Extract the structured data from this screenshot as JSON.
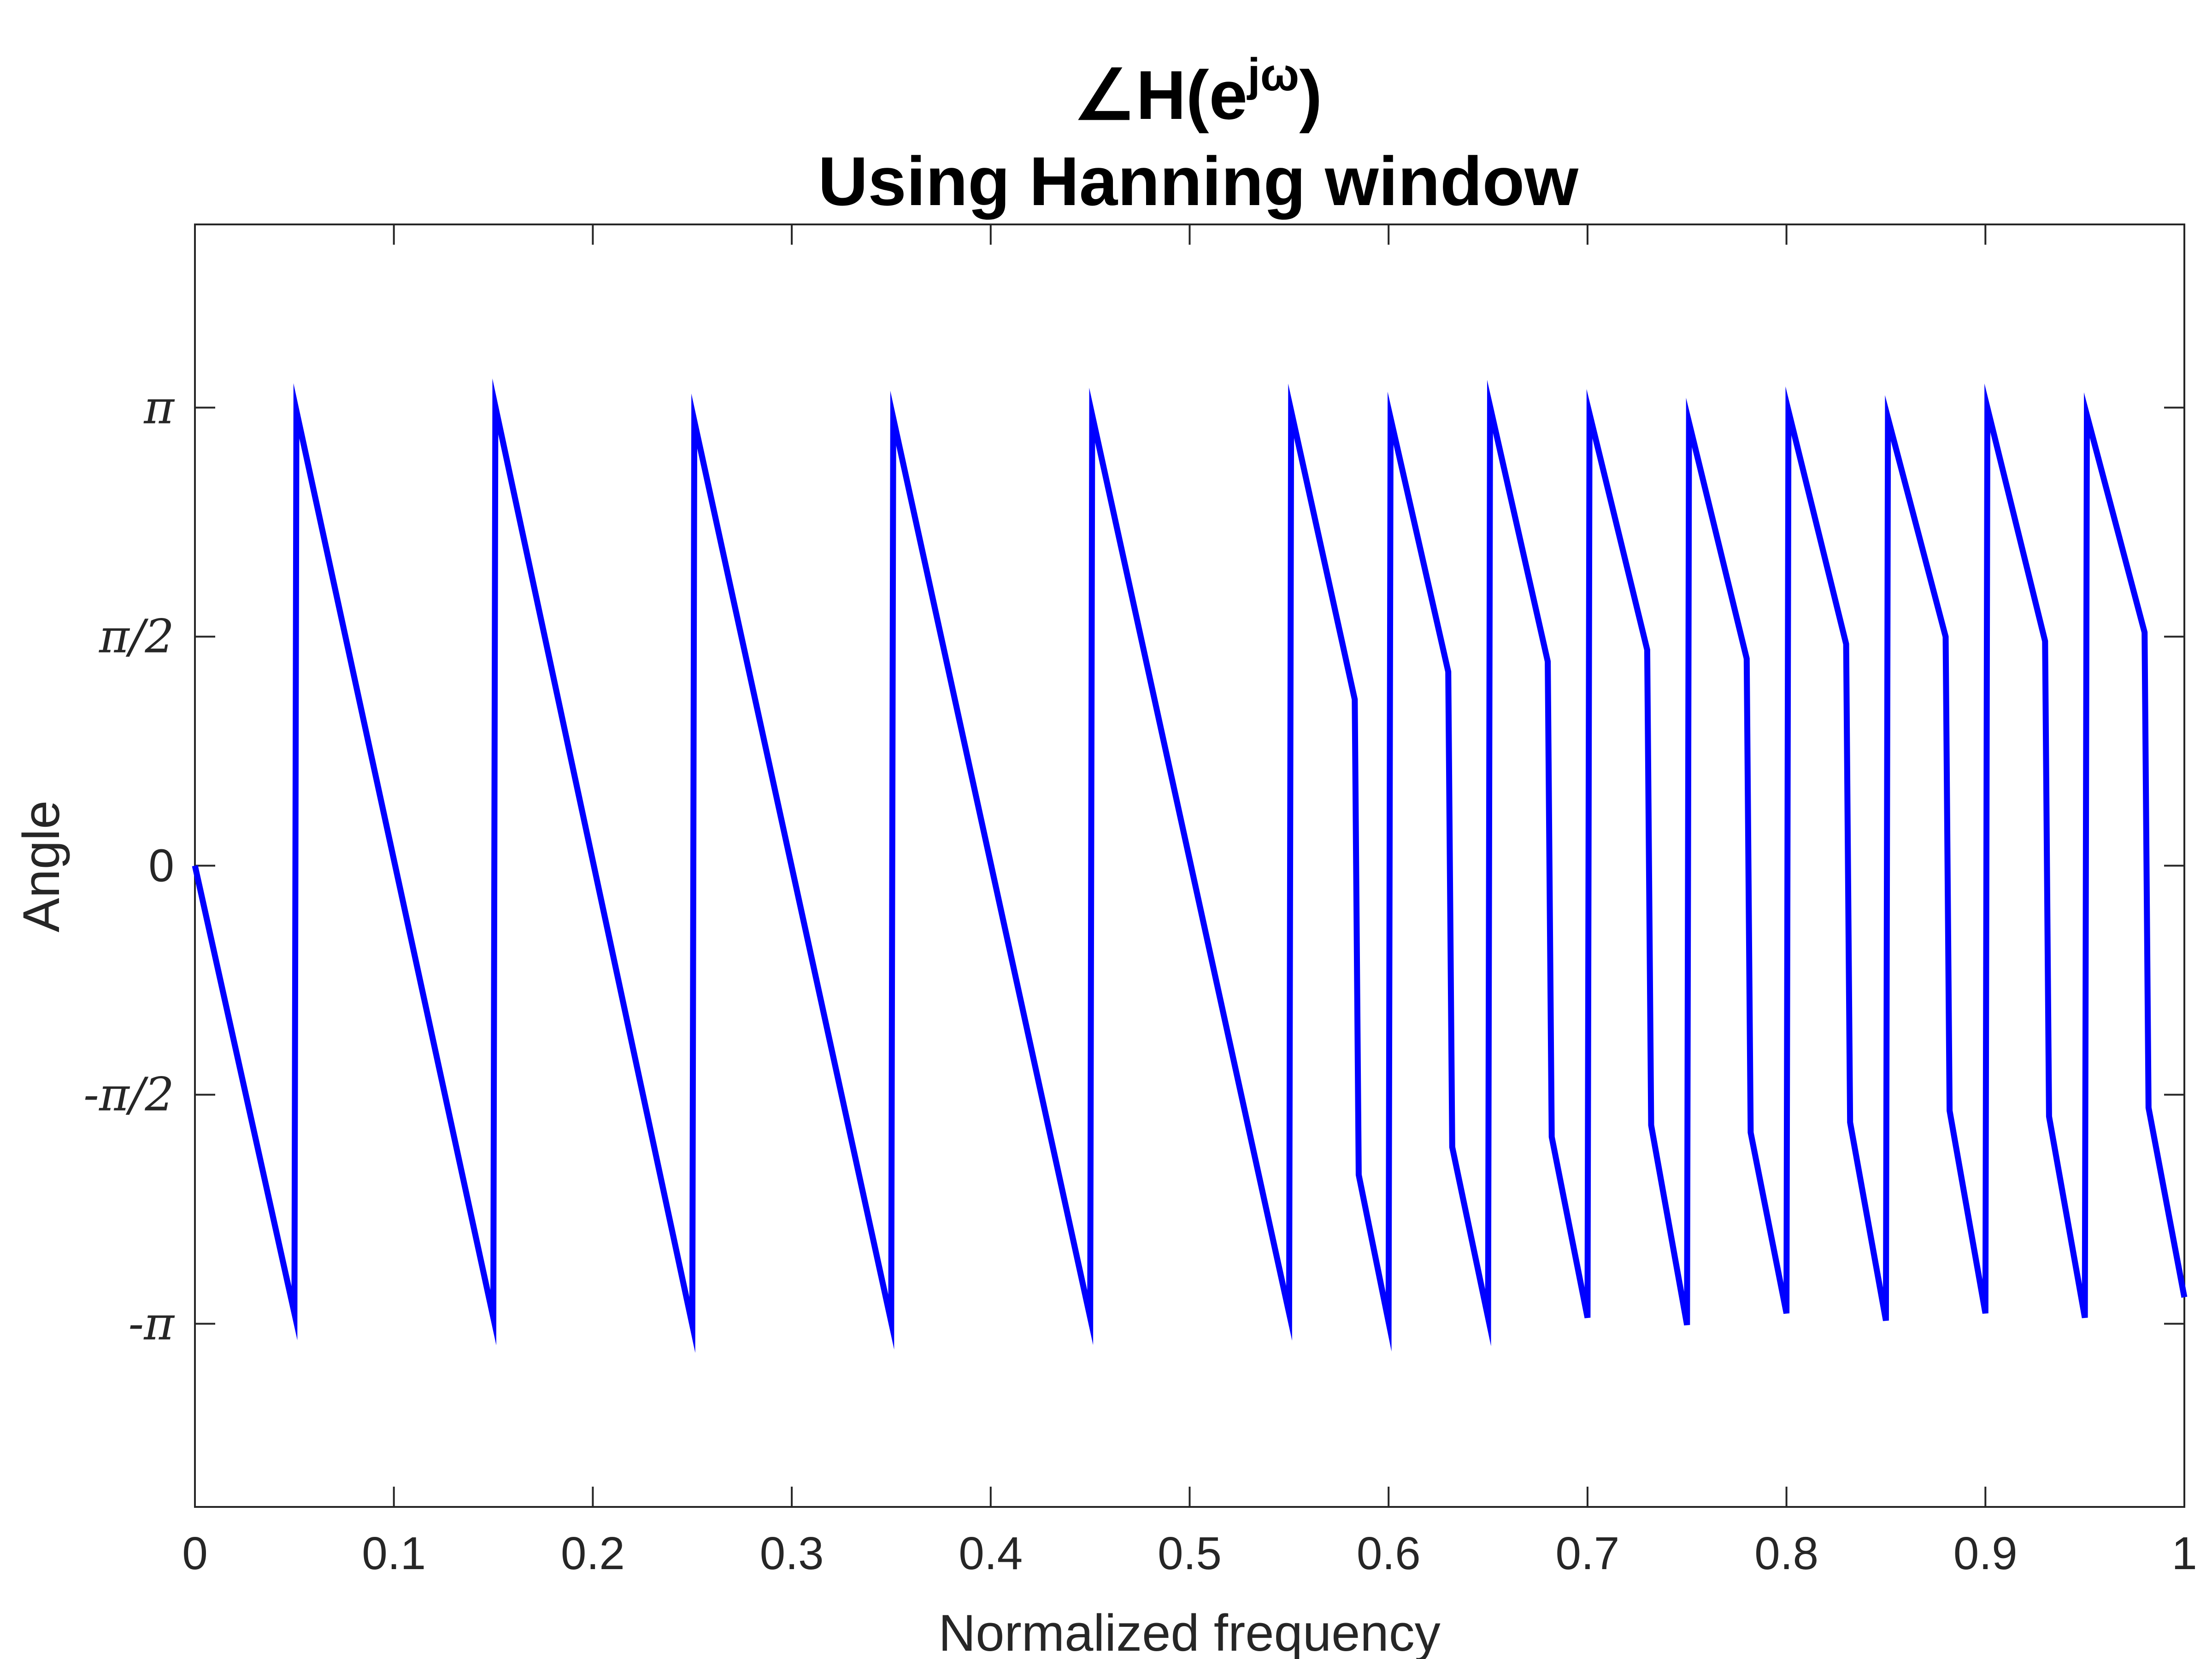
{
  "chart_data": {
    "type": "line",
    "title_line1": {
      "angle_symbol": "∠",
      "base": "H(e",
      "superscript": "jω",
      "close": ")"
    },
    "title_line2": "Using Hanning window",
    "xlabel": "Normalized frequency",
    "ylabel": "Angle",
    "xlim": [
      0,
      1
    ],
    "ylim": [
      -4.398,
      4.398
    ],
    "grid": false,
    "box": true,
    "x_ticks": [
      {
        "value": 0,
        "label": "0"
      },
      {
        "value": 0.1,
        "label": "0.1"
      },
      {
        "value": 0.2,
        "label": "0.2"
      },
      {
        "value": 0.3,
        "label": "0.3"
      },
      {
        "value": 0.4,
        "label": "0.4"
      },
      {
        "value": 0.5,
        "label": "0.5"
      },
      {
        "value": 0.6,
        "label": "0.6"
      },
      {
        "value": 0.7,
        "label": "0.7"
      },
      {
        "value": 0.8,
        "label": "0.8"
      },
      {
        "value": 0.9,
        "label": "0.9"
      },
      {
        "value": 1,
        "label": "1"
      }
    ],
    "y_ticks": [
      {
        "value": -3.1416,
        "label": "-π"
      },
      {
        "value": -1.5708,
        "label": "-π/2"
      },
      {
        "value": 0,
        "label": "0"
      },
      {
        "value": 1.5708,
        "label": "π/2"
      },
      {
        "value": 3.1416,
        "label": "π"
      }
    ],
    "series": [
      {
        "color": "#0000ff",
        "x": [
          0,
          0.05,
          0.051,
          0.15,
          0.151,
          0.25,
          0.251,
          0.35,
          0.351,
          0.45,
          0.451,
          0.55,
          0.551,
          0.583,
          0.585,
          0.6,
          0.601,
          0.63,
          0.632,
          0.65,
          0.651,
          0.68,
          0.682,
          0.7,
          0.701,
          0.73,
          0.732,
          0.75,
          0.751,
          0.78,
          0.782,
          0.8,
          0.801,
          0.83,
          0.832,
          0.85,
          0.851,
          0.88,
          0.882,
          0.9,
          0.901,
          0.93,
          0.932,
          0.95,
          0.951,
          0.98,
          0.982,
          1.0
        ],
        "y": [
          0,
          -3.07,
          3.12,
          -3.1,
          3.15,
          -3.15,
          3.05,
          -3.13,
          3.07,
          -3.1,
          3.09,
          -3.07,
          3.12,
          1.14,
          -2.12,
          -3.13,
          3.07,
          1.33,
          -1.93,
          -3.1,
          3.15,
          1.4,
          -1.86,
          -3.1,
          3.1,
          1.48,
          -1.78,
          -3.15,
          3.04,
          1.42,
          -1.83,
          -3.07,
          3.12,
          1.52,
          -1.76,
          -3.12,
          3.07,
          1.57,
          -1.68,
          -3.07,
          3.14,
          1.54,
          -1.72,
          -3.1,
          3.09,
          1.6,
          -1.66,
          -2.96
        ]
      }
    ]
  }
}
